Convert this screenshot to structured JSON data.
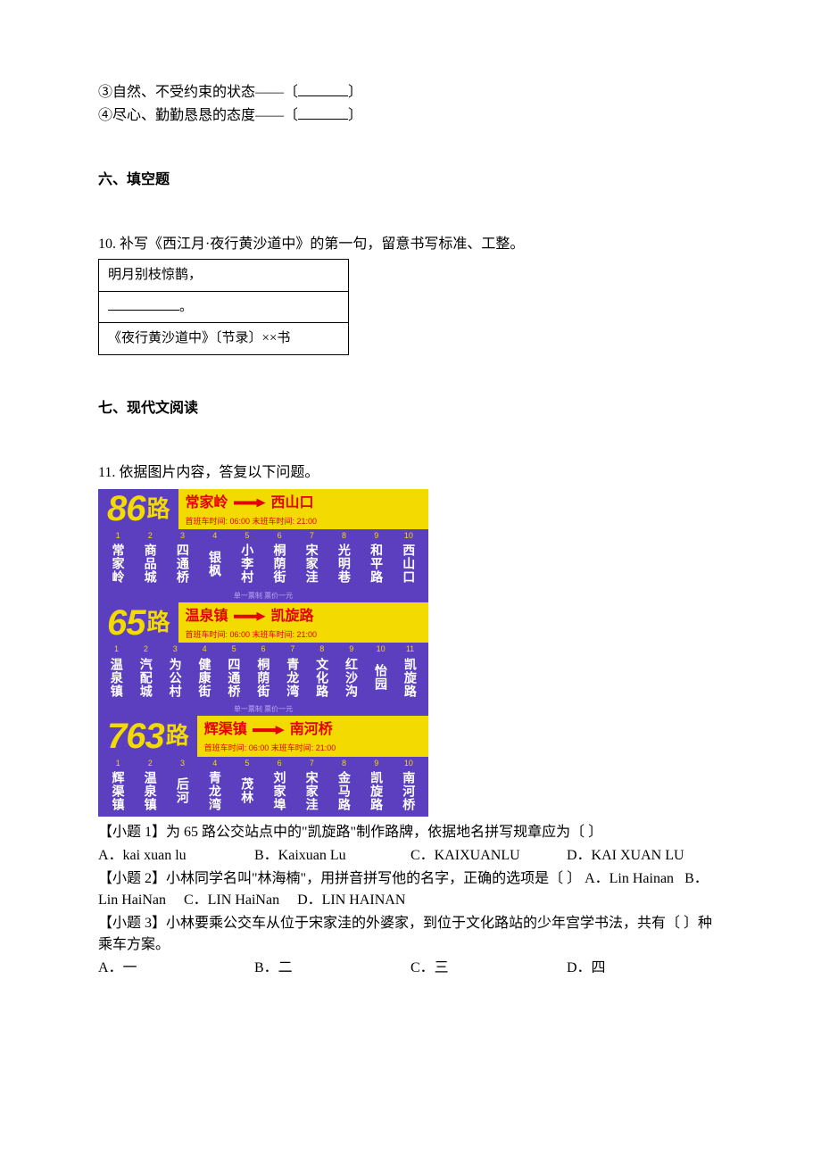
{
  "top_lines": {
    "l3": "③自然、不受约束的状态——〔",
    "l3_end": "〕",
    "l4": "④尽心、勤勤恳恳的态度——〔",
    "l4_end": "〕"
  },
  "section6": "六、填空题",
  "q10": {
    "stem": "10. 补写《西江月·夜行黄沙道中》的第一句，留意书写标准、工整。",
    "row1": "明月别枝惊鹊，",
    "row2_end": "。",
    "row3": "《夜行黄沙道中》〔节录〕××书"
  },
  "section7": "七、现代文阅读",
  "q11": {
    "stem": "11. 依据图片内容，答复以下问题。"
  },
  "routes": [
    {
      "num": "86",
      "lu": "路",
      "from": "常家岭",
      "to": "西山口",
      "time": "首班车时间: 06:00   末班车时间: 21:00",
      "stops": [
        "常家岭",
        "商品城",
        "四通桥",
        "银枫",
        "小李村",
        "桐荫街",
        "宋家洼",
        "光明巷",
        "和平路",
        "西山口"
      ]
    },
    {
      "num": "65",
      "lu": "路",
      "from": "温泉镇",
      "to": "凯旋路",
      "time": "首班车时间: 06:00   末班车时间: 21:00",
      "stops": [
        "温泉镇",
        "汽配城",
        "为公村",
        "健康街",
        "四通桥",
        "桐荫街",
        "青龙湾",
        "文化路",
        "红沙沟",
        "怡园",
        "凯旋路"
      ]
    },
    {
      "num": "763",
      "lu": "路",
      "from": "辉渠镇",
      "to": "南河桥",
      "time": "首班车时间: 06:00   末班车时间: 21:00",
      "stops": [
        "辉渠镇",
        "温泉镇",
        "后河",
        "青龙湾",
        "茂林",
        "刘家埠",
        "宋家洼",
        "金马路",
        "凯旋路",
        "南河桥"
      ]
    }
  ],
  "fare": "单一票制 票价一元",
  "sub1": {
    "stem": "【小题 1】为 65 路公交站点中的\"凯旋路\"制作路牌，依据地名拼写规章应为〔  〕",
    "a": "A．kai xuan lu",
    "b": "B．Kaixuan Lu",
    "c": "C．KAIXUANLU",
    "d": "D．KAI XUAN LU"
  },
  "sub2": {
    "stem": "【小题 2】小林同学名叫\"林海楠\"，用拼音拼写他的名字，正确的选项是〔  〕",
    "a": "A．Lin Hainan",
    "b": "B．Lin HaiNan",
    "c": "C．LIN HaiNan",
    "d": "D．LIN HAINAN"
  },
  "sub3": {
    "stem": "【小题 3】小林要乘公交车从位于宋家洼的外婆家，到位于文化路站的少年宫学书法，共有〔  〕种乘车方案。",
    "a": "A．一",
    "b": "B．二",
    "c": "C．三",
    "d": "D．四"
  }
}
